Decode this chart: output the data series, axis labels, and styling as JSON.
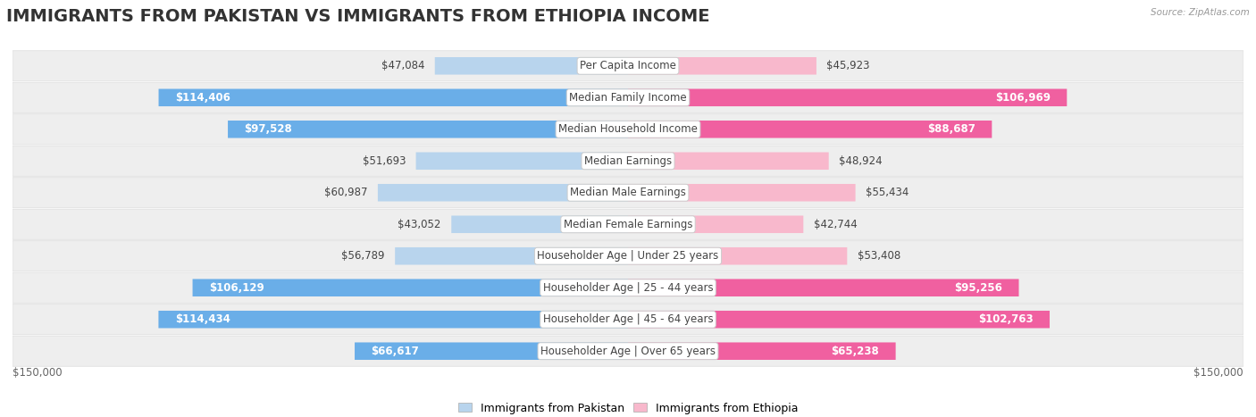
{
  "title": "IMMIGRANTS FROM PAKISTAN VS IMMIGRANTS FROM ETHIOPIA INCOME",
  "source": "Source: ZipAtlas.com",
  "categories": [
    "Per Capita Income",
    "Median Family Income",
    "Median Household Income",
    "Median Earnings",
    "Median Male Earnings",
    "Median Female Earnings",
    "Householder Age | Under 25 years",
    "Householder Age | 25 - 44 years",
    "Householder Age | 45 - 64 years",
    "Householder Age | Over 65 years"
  ],
  "pakistan_values": [
    47084,
    114406,
    97528,
    51693,
    60987,
    43052,
    56789,
    106129,
    114434,
    66617
  ],
  "ethiopia_values": [
    45923,
    106969,
    88687,
    48924,
    55434,
    42744,
    53408,
    95256,
    102763,
    65238
  ],
  "pakistan_color_light": "#b8d4ed",
  "pakistan_color_dark": "#6aaee8",
  "ethiopia_color_light": "#f8b8cc",
  "ethiopia_color_dark": "#f060a0",
  "pakistan_label": "Immigrants from Pakistan",
  "ethiopia_label": "Immigrants from Ethiopia",
  "max_value": 150000,
  "background_color": "#ffffff",
  "title_fontsize": 14,
  "label_fontsize": 8.5,
  "value_fontsize": 8.5,
  "axis_label": "$150,000",
  "threshold_inside": 65000
}
